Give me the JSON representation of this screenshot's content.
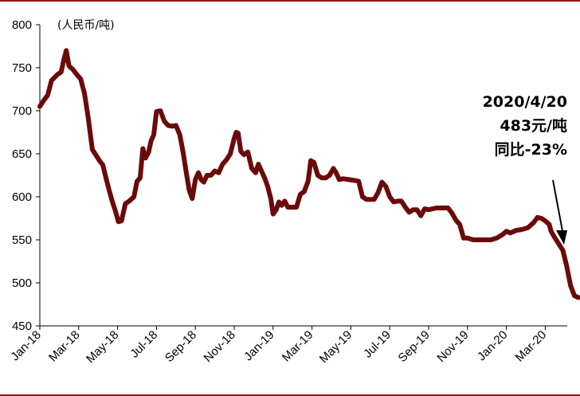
{
  "chart_data": {
    "type": "line",
    "title": "",
    "unit_label": "(人民币/吨)",
    "ylim": [
      450,
      800
    ],
    "yticks": [
      450,
      500,
      550,
      600,
      650,
      700,
      750,
      800
    ],
    "xticks": [
      "Jan-18",
      "Mar-18",
      "May-18",
      "Jul-18",
      "Sep-18",
      "Nov-18",
      "Jan-19",
      "Mar-19",
      "May-19",
      "Jul-19",
      "Sep-19",
      "Nov-19",
      "Jan-20",
      "Mar-20"
    ],
    "grid": false,
    "line_color": "#6b0a0a",
    "series": [
      {
        "values": [
          [
            0,
            705
          ],
          [
            0.1,
            712
          ],
          [
            0.2,
            718
          ],
          [
            0.3,
            735
          ],
          [
            0.45,
            742
          ],
          [
            0.55,
            745
          ],
          [
            0.62,
            760
          ],
          [
            0.68,
            770
          ],
          [
            0.75,
            752
          ],
          [
            0.85,
            748
          ],
          [
            0.95,
            742
          ],
          [
            1.05,
            737
          ],
          [
            1.15,
            720
          ],
          [
            1.25,
            690
          ],
          [
            1.35,
            655
          ],
          [
            1.45,
            648
          ],
          [
            1.55,
            641
          ],
          [
            1.62,
            637
          ],
          [
            1.7,
            622
          ],
          [
            1.78,
            608
          ],
          [
            1.86,
            595
          ],
          [
            1.94,
            584
          ],
          [
            2.02,
            571
          ],
          [
            2.1,
            572
          ],
          [
            2.2,
            592
          ],
          [
            2.3,
            595
          ],
          [
            2.42,
            600
          ],
          [
            2.5,
            618
          ],
          [
            2.58,
            622
          ],
          [
            2.65,
            656
          ],
          [
            2.72,
            645
          ],
          [
            2.8,
            652
          ],
          [
            2.86,
            665
          ],
          [
            2.93,
            672
          ],
          [
            3.0,
            699
          ],
          [
            3.1,
            700
          ],
          [
            3.2,
            688
          ],
          [
            3.3,
            683
          ],
          [
            3.4,
            682
          ],
          [
            3.5,
            683
          ],
          [
            3.6,
            672
          ],
          [
            3.68,
            653
          ],
          [
            3.76,
            630
          ],
          [
            3.84,
            608
          ],
          [
            3.92,
            598
          ],
          [
            4.0,
            620
          ],
          [
            4.08,
            628
          ],
          [
            4.15,
            620
          ],
          [
            4.22,
            617
          ],
          [
            4.3,
            625
          ],
          [
            4.4,
            625
          ],
          [
            4.5,
            630
          ],
          [
            4.6,
            628
          ],
          [
            4.7,
            638
          ],
          [
            4.8,
            643
          ],
          [
            4.9,
            650
          ],
          [
            5.0,
            668
          ],
          [
            5.05,
            675
          ],
          [
            5.1,
            674
          ],
          [
            5.17,
            653
          ],
          [
            5.25,
            649
          ],
          [
            5.35,
            652
          ],
          [
            5.45,
            633
          ],
          [
            5.55,
            628
          ],
          [
            5.62,
            638
          ],
          [
            5.7,
            630
          ],
          [
            5.78,
            622
          ],
          [
            5.86,
            612
          ],
          [
            5.94,
            598
          ],
          [
            6.0,
            580
          ],
          [
            6.08,
            585
          ],
          [
            6.15,
            594
          ],
          [
            6.22,
            590
          ],
          [
            6.3,
            595
          ],
          [
            6.38,
            588
          ],
          [
            6.5,
            588
          ],
          [
            6.6,
            588
          ],
          [
            6.7,
            603
          ],
          [
            6.8,
            606
          ],
          [
            6.9,
            618
          ],
          [
            6.97,
            642
          ],
          [
            7.05,
            640
          ],
          [
            7.15,
            625
          ],
          [
            7.25,
            622
          ],
          [
            7.35,
            622
          ],
          [
            7.45,
            625
          ],
          [
            7.55,
            633
          ],
          [
            7.62,
            628
          ],
          [
            7.7,
            620
          ],
          [
            7.8,
            621
          ],
          [
            7.95,
            620
          ],
          [
            8.1,
            619
          ],
          [
            8.2,
            618
          ],
          [
            8.3,
            600
          ],
          [
            8.4,
            597
          ],
          [
            8.5,
            597
          ],
          [
            8.6,
            597
          ],
          [
            8.7,
            605
          ],
          [
            8.8,
            617
          ],
          [
            8.9,
            612
          ],
          [
            9.0,
            600
          ],
          [
            9.1,
            594
          ],
          [
            9.2,
            595
          ],
          [
            9.3,
            595
          ],
          [
            9.4,
            588
          ],
          [
            9.5,
            582
          ],
          [
            9.6,
            585
          ],
          [
            9.7,
            585
          ],
          [
            9.8,
            578
          ],
          [
            9.9,
            586
          ],
          [
            10.0,
            585
          ],
          [
            10.1,
            586
          ],
          [
            10.2,
            587
          ],
          [
            10.3,
            587
          ],
          [
            10.4,
            587
          ],
          [
            10.5,
            587
          ],
          [
            10.6,
            581
          ],
          [
            10.7,
            573
          ],
          [
            10.8,
            568
          ],
          [
            10.9,
            552
          ],
          [
            11.0,
            552
          ],
          [
            11.15,
            550
          ],
          [
            11.3,
            550
          ],
          [
            11.45,
            550
          ],
          [
            11.6,
            550
          ],
          [
            11.75,
            552
          ],
          [
            11.9,
            556
          ],
          [
            12.0,
            560
          ],
          [
            12.1,
            558
          ],
          [
            12.25,
            561
          ],
          [
            12.4,
            562
          ],
          [
            12.55,
            564
          ],
          [
            12.7,
            570
          ],
          [
            12.8,
            576
          ],
          [
            12.9,
            575
          ],
          [
            13.0,
            572
          ],
          [
            13.1,
            568
          ],
          [
            13.15,
            560
          ],
          [
            13.25,
            552
          ],
          [
            13.35,
            545
          ],
          [
            13.45,
            538
          ],
          [
            13.55,
            520
          ],
          [
            13.65,
            497
          ],
          [
            13.75,
            485
          ],
          [
            13.85,
            483
          ]
        ]
      }
    ],
    "annotation": {
      "line1": "2020/4/20",
      "line2": "483元/吨",
      "line3": "同比-23%"
    }
  }
}
